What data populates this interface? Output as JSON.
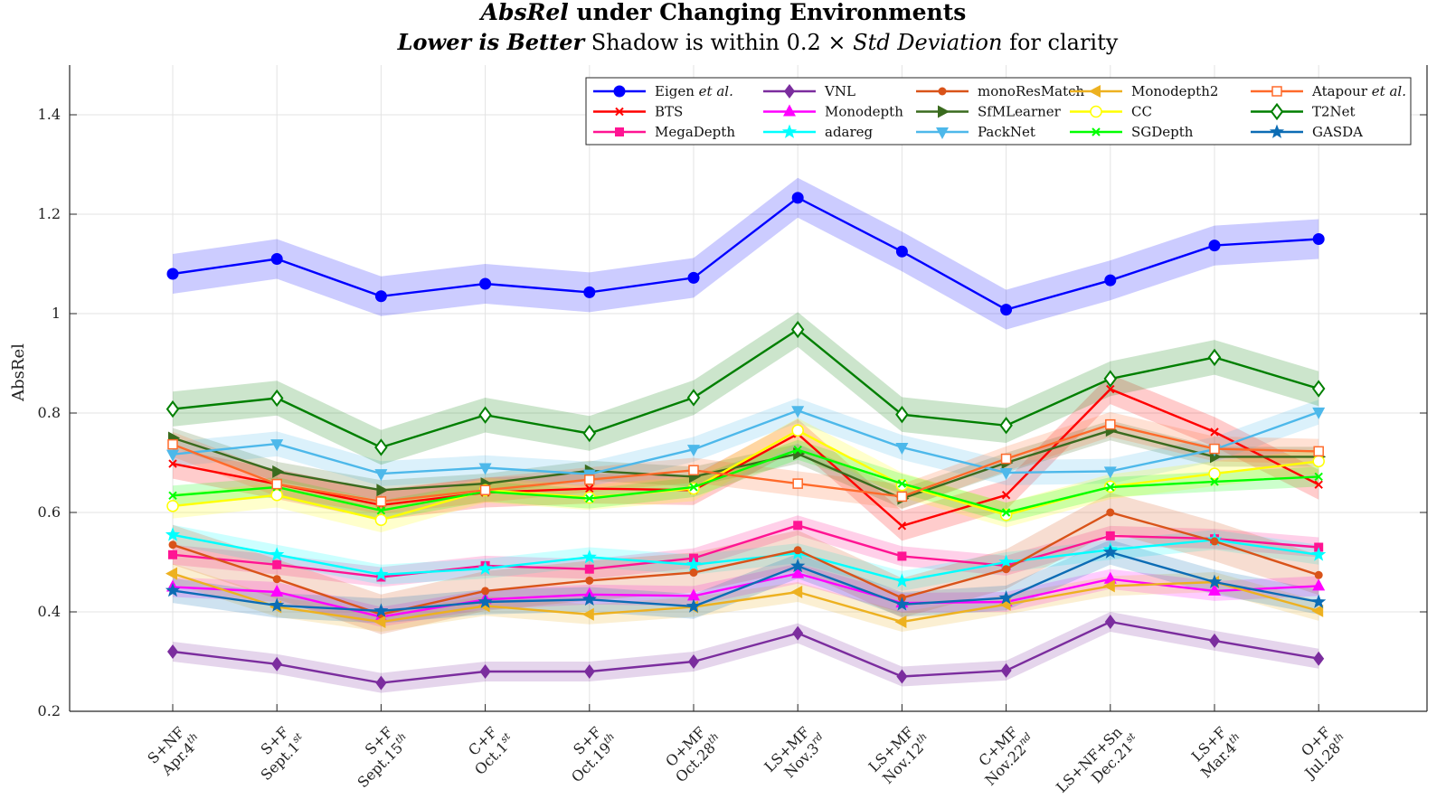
{
  "chart_data": {
    "type": "line",
    "title": "AbsRel under Changing Environments",
    "title_italic_word": "AbsRel",
    "subtitle_parts": [
      "Lower is Better",
      "Shadow is within 0.2 × ",
      "Std Deviation",
      " for clarity"
    ],
    "xlabel": "",
    "ylabel": "AbsRel",
    "ylim": [
      0.2,
      1.5
    ],
    "yticks": [
      0.2,
      0.4,
      0.6,
      0.8,
      1,
      1.2,
      1.4
    ],
    "grid": true,
    "legend_position": "top-right",
    "categories": [
      [
        "S+NF",
        "Apr.4",
        "th"
      ],
      [
        "S+F",
        "Sept.1",
        "st"
      ],
      [
        "S+F",
        "Sept.15",
        "th"
      ],
      [
        "C+F",
        "Oct.1",
        "st"
      ],
      [
        "S+F",
        "Oct.19",
        "th"
      ],
      [
        "O+MF",
        "Oct.28",
        "th"
      ],
      [
        "LS+MF",
        "Nov.3",
        "rd"
      ],
      [
        "LS+MF",
        "Nov.12",
        "th"
      ],
      [
        "C+MF",
        "Nov.22",
        "nd"
      ],
      [
        "LS+NF+Sn",
        "Dec.21",
        "st"
      ],
      [
        "LS+F",
        "Mar.4",
        "th"
      ],
      [
        "O+F",
        "Jul.28",
        "th"
      ]
    ],
    "series": [
      {
        "name": "Eigen et al.",
        "color": "#0000ff",
        "marker": "circle",
        "shade": 0.04,
        "values": [
          1.08,
          1.11,
          1.035,
          1.06,
          1.043,
          1.072,
          1.233,
          1.125,
          1.008,
          1.067,
          1.137,
          1.15
        ]
      },
      {
        "name": "BTS",
        "color": "#ff0000",
        "marker": "x",
        "shade": 0.03,
        "values": [
          0.698,
          0.657,
          0.615,
          0.64,
          0.648,
          0.645,
          0.758,
          0.573,
          0.635,
          0.848,
          0.762,
          0.656
        ]
      },
      {
        "name": "MegaDepth",
        "color": "#ff1493",
        "marker": "square",
        "shade": 0.02,
        "values": [
          0.515,
          0.495,
          0.47,
          0.493,
          0.486,
          0.508,
          0.574,
          0.512,
          0.493,
          0.553,
          0.547,
          0.53
        ]
      },
      {
        "name": "VNL",
        "color": "#7b2d9e",
        "marker": "diamond",
        "shade": 0.02,
        "values": [
          0.32,
          0.295,
          0.257,
          0.28,
          0.28,
          0.3,
          0.357,
          0.27,
          0.282,
          0.38,
          0.342,
          0.306
        ]
      },
      {
        "name": "Monodepth",
        "color": "#ff00ff",
        "marker": "triangle-up",
        "shade": 0.02,
        "values": [
          0.45,
          0.44,
          0.39,
          0.425,
          0.435,
          0.432,
          0.477,
          0.418,
          0.42,
          0.466,
          0.442,
          0.452
        ]
      },
      {
        "name": "adareg",
        "color": "#00ffff",
        "marker": "star",
        "shade": 0.02,
        "values": [
          0.555,
          0.515,
          0.475,
          0.487,
          0.51,
          0.495,
          0.518,
          0.462,
          0.5,
          0.525,
          0.545,
          0.515
        ]
      },
      {
        "name": "monoResMatch",
        "color": "#d95319",
        "marker": "dot",
        "shade": 0.04,
        "values": [
          0.535,
          0.466,
          0.395,
          0.442,
          0.463,
          0.479,
          0.524,
          0.428,
          0.486,
          0.6,
          0.542,
          0.474
        ]
      },
      {
        "name": "SfMLearner",
        "color": "#3a6b1e",
        "marker": "triangle-right",
        "shade": 0.02,
        "values": [
          0.75,
          0.682,
          0.645,
          0.658,
          0.684,
          0.672,
          0.718,
          0.628,
          0.7,
          0.765,
          0.712,
          0.712
        ]
      },
      {
        "name": "PackNet",
        "color": "#4db8ea",
        "marker": "triangle-down",
        "shade": 0.025,
        "values": [
          0.717,
          0.738,
          0.678,
          0.69,
          0.677,
          0.727,
          0.805,
          0.731,
          0.68,
          0.683,
          0.727,
          0.802
        ]
      },
      {
        "name": "Monodepth2",
        "color": "#edb120",
        "marker": "triangle-left",
        "shade": 0.02,
        "values": [
          0.477,
          0.41,
          0.38,
          0.412,
          0.395,
          0.41,
          0.44,
          0.38,
          0.415,
          0.452,
          0.46,
          0.402
        ]
      },
      {
        "name": "CC",
        "color": "#ffff00",
        "marker": "circle-open",
        "shade": 0.025,
        "values": [
          0.613,
          0.635,
          0.585,
          0.645,
          0.63,
          0.648,
          0.765,
          0.655,
          0.595,
          0.652,
          0.678,
          0.703
        ]
      },
      {
        "name": "SGDepth",
        "color": "#00ff00",
        "marker": "x",
        "shade": 0.02,
        "values": [
          0.634,
          0.651,
          0.604,
          0.642,
          0.628,
          0.651,
          0.726,
          0.658,
          0.6,
          0.651,
          0.662,
          0.672
        ]
      },
      {
        "name": "Atapour et al.",
        "color": "#ff6a2a",
        "marker": "square-open",
        "shade": 0.025,
        "values": [
          0.737,
          0.657,
          0.622,
          0.645,
          0.666,
          0.685,
          0.658,
          0.632,
          0.708,
          0.777,
          0.728,
          0.723
        ]
      },
      {
        "name": "T2Net",
        "color": "#007f00",
        "marker": "diamond-open",
        "shade": 0.035,
        "values": [
          0.808,
          0.83,
          0.731,
          0.796,
          0.759,
          0.831,
          0.968,
          0.797,
          0.775,
          0.869,
          0.912,
          0.849
        ]
      },
      {
        "name": "GASDA",
        "color": "#0b6cb4",
        "marker": "star",
        "shade": 0.025,
        "values": [
          0.443,
          0.413,
          0.402,
          0.42,
          0.425,
          0.411,
          0.492,
          0.415,
          0.428,
          0.52,
          0.46,
          0.42
        ]
      }
    ],
    "legend_order": [
      [
        "Eigen et al.",
        "VNL",
        "monoResMatch",
        "Monodepth2",
        "Atapour et al."
      ],
      [
        "BTS",
        "Monodepth",
        "SfMLearner",
        "CC",
        "T2Net"
      ],
      [
        "MegaDepth",
        "adareg",
        "PackNet",
        "SGDepth",
        "GASDA"
      ]
    ]
  }
}
